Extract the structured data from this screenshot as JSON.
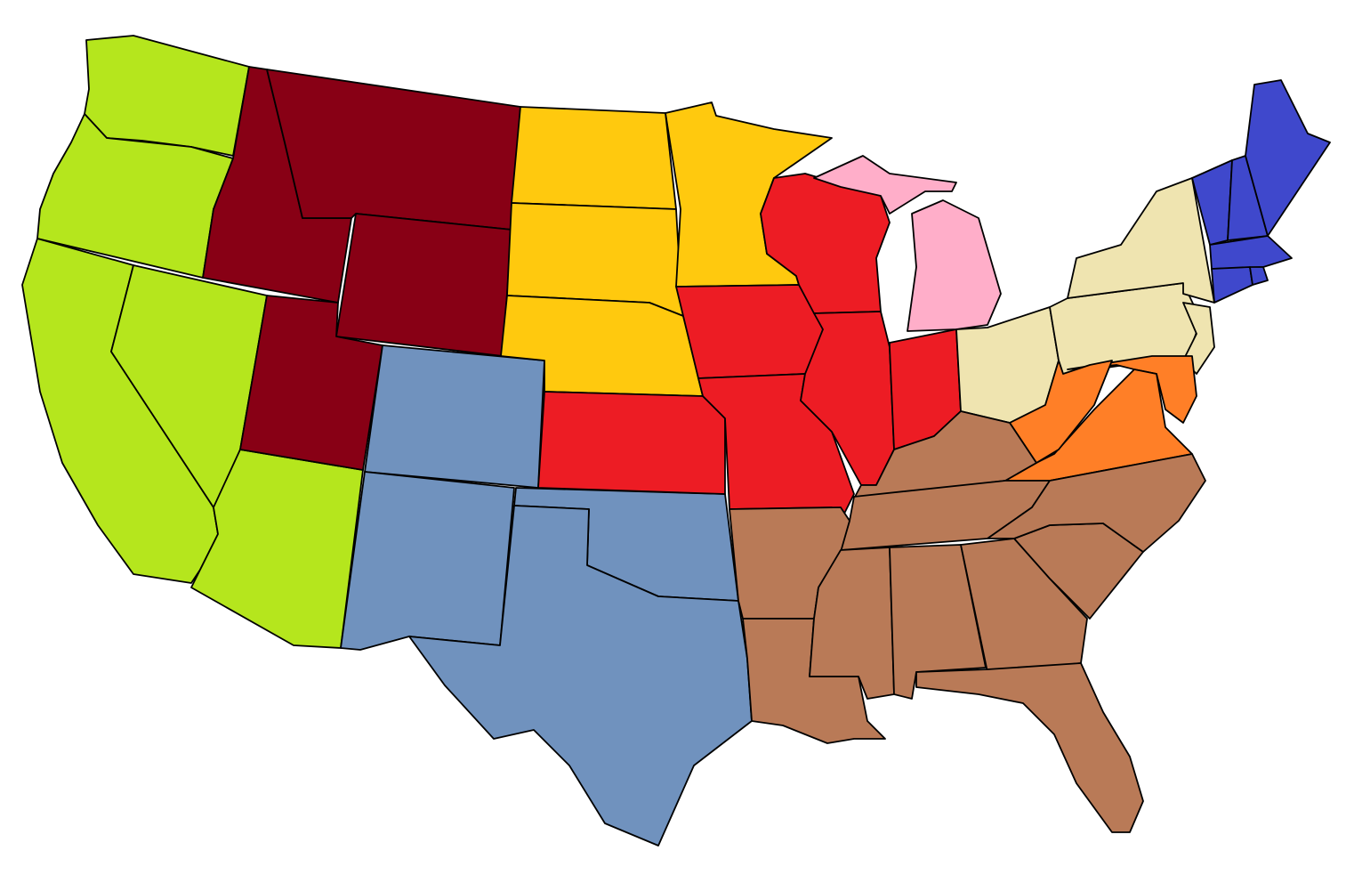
{
  "map": {
    "background": "#ffffff",
    "border_color": "#000000",
    "regions": [
      {
        "id": "pacific",
        "color": "#b5e61d"
      },
      {
        "id": "mountain",
        "color": "#880015"
      },
      {
        "id": "southwest",
        "color": "#7092be"
      },
      {
        "id": "plains",
        "color": "#ffc90e"
      },
      {
        "id": "midwest",
        "color": "#ed1c24"
      },
      {
        "id": "michigan",
        "color": "#ffaec9"
      },
      {
        "id": "mid-atlantic",
        "color": "#efe4b0"
      },
      {
        "id": "upper-south",
        "color": "#ff7f27"
      },
      {
        "id": "south",
        "color": "#b97a57"
      },
      {
        "id": "new-england",
        "color": "#3f48cc"
      }
    ]
  }
}
